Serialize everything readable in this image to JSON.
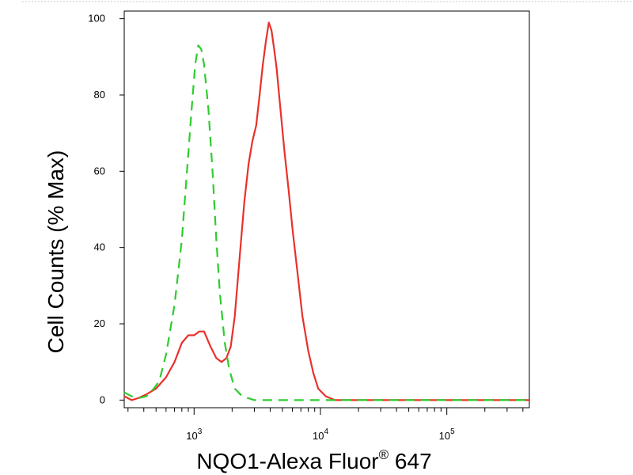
{
  "chart_data": {
    "type": "line",
    "title": "",
    "xlabel": {
      "main": "NQO1-Alexa Fluor",
      "superscript": "®",
      "suffix": " 647"
    },
    "ylabel": "Cell Counts (% Max)",
    "x_scale": "log",
    "xlim": [
      280,
      450000
    ],
    "ylim": [
      -2,
      102
    ],
    "x_tick_labels": [
      {
        "value": 1000,
        "base": "10",
        "exp": "3"
      },
      {
        "value": 10000,
        "base": "10",
        "exp": "4"
      },
      {
        "value": 100000,
        "base": "10",
        "exp": "5"
      }
    ],
    "y_tick_labels": [
      "0",
      "20",
      "40",
      "60",
      "80",
      "100"
    ],
    "y_ticks": [
      0,
      20,
      40,
      60,
      80,
      100
    ],
    "grid": false,
    "series": [
      {
        "color": "#e8312a",
        "style": "solid",
        "points": [
          [
            280,
            1
          ],
          [
            320,
            0
          ],
          [
            360,
            0.5
          ],
          [
            420,
            1.5
          ],
          [
            500,
            3
          ],
          [
            600,
            6
          ],
          [
            700,
            10
          ],
          [
            800,
            15
          ],
          [
            900,
            17
          ],
          [
            1000,
            17
          ],
          [
            1100,
            18
          ],
          [
            1200,
            18
          ],
          [
            1350,
            14
          ],
          [
            1500,
            11
          ],
          [
            1650,
            10
          ],
          [
            1800,
            11
          ],
          [
            1950,
            14
          ],
          [
            2100,
            22
          ],
          [
            2300,
            38
          ],
          [
            2500,
            52
          ],
          [
            2700,
            62
          ],
          [
            2900,
            68
          ],
          [
            3100,
            72
          ],
          [
            3300,
            80
          ],
          [
            3500,
            88
          ],
          [
            3700,
            94
          ],
          [
            3900,
            99
          ],
          [
            4100,
            97
          ],
          [
            4300,
            92
          ],
          [
            4500,
            87
          ],
          [
            4800,
            77
          ],
          [
            5200,
            65
          ],
          [
            5600,
            55
          ],
          [
            6000,
            45
          ],
          [
            6600,
            33
          ],
          [
            7200,
            22
          ],
          [
            8000,
            13
          ],
          [
            8800,
            7
          ],
          [
            9600,
            3
          ],
          [
            11000,
            1
          ],
          [
            13000,
            0
          ],
          [
            16000,
            0
          ],
          [
            30000,
            0
          ],
          [
            100000,
            0
          ],
          [
            450000,
            0
          ]
        ]
      },
      {
        "color": "#2ecc2e",
        "style": "dashed",
        "points": [
          [
            280,
            2
          ],
          [
            320,
            1
          ],
          [
            360,
            0.5
          ],
          [
            420,
            1
          ],
          [
            480,
            3
          ],
          [
            530,
            5
          ],
          [
            600,
            12
          ],
          [
            700,
            25
          ],
          [
            800,
            42
          ],
          [
            870,
            58
          ],
          [
            950,
            75
          ],
          [
            1020,
            88
          ],
          [
            1080,
            93
          ],
          [
            1140,
            92
          ],
          [
            1200,
            88
          ],
          [
            1300,
            76
          ],
          [
            1400,
            60
          ],
          [
            1500,
            42
          ],
          [
            1600,
            28
          ],
          [
            1750,
            15
          ],
          [
            1900,
            8
          ],
          [
            2100,
            3
          ],
          [
            2400,
            1
          ],
          [
            3000,
            0
          ],
          [
            10000,
            0
          ],
          [
            100000,
            0
          ],
          [
            450000,
            0
          ]
        ]
      }
    ]
  }
}
